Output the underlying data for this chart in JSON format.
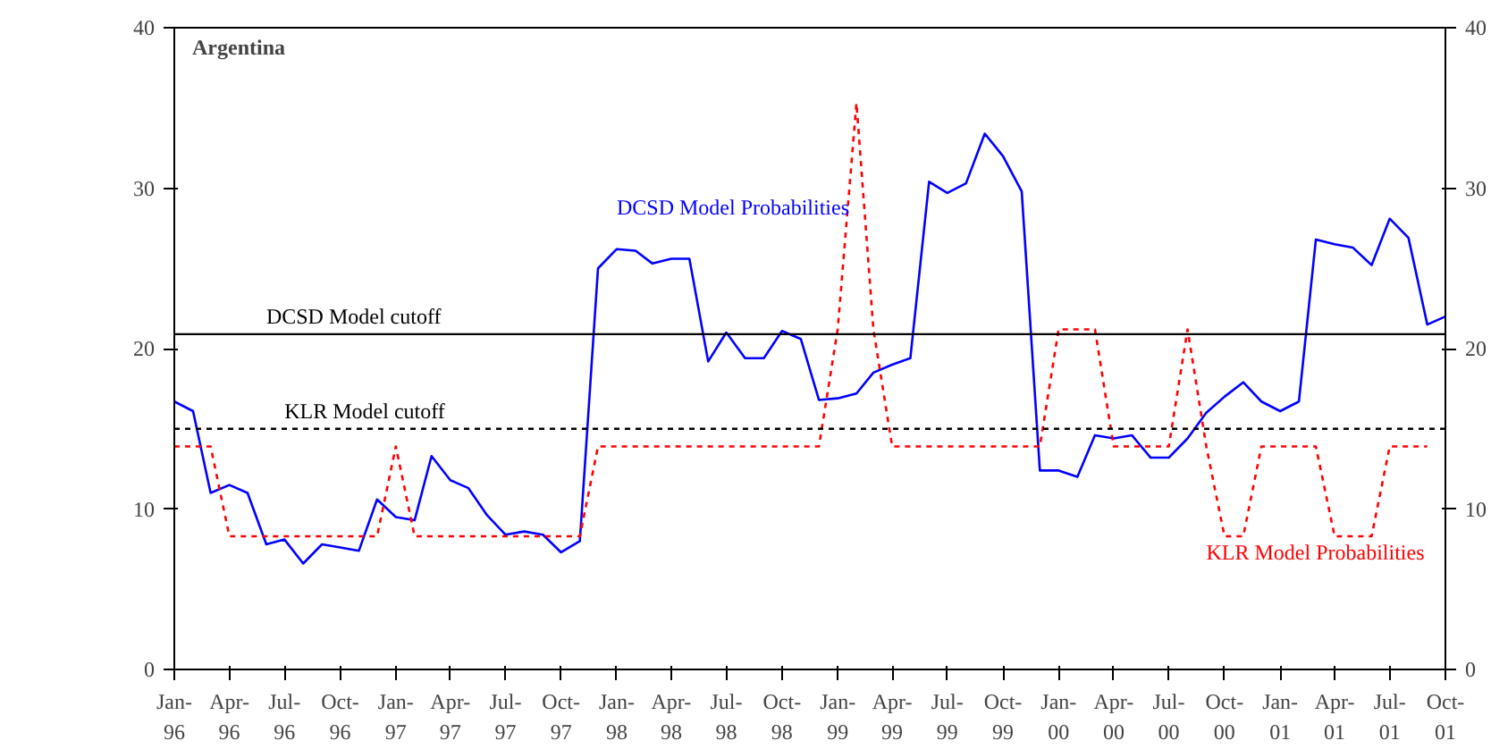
{
  "chart_data": {
    "type": "line",
    "title": "Argentina",
    "x": [
      "1996-01",
      "1996-02",
      "1996-03",
      "1996-04",
      "1996-05",
      "1996-06",
      "1996-07",
      "1996-08",
      "1996-09",
      "1996-10",
      "1996-11",
      "1996-12",
      "1997-01",
      "1997-02",
      "1997-03",
      "1997-04",
      "1997-05",
      "1997-06",
      "1997-07",
      "1997-08",
      "1997-09",
      "1997-10",
      "1997-11",
      "1997-12",
      "1998-01",
      "1998-02",
      "1998-03",
      "1998-04",
      "1998-05",
      "1998-06",
      "1998-07",
      "1998-08",
      "1998-09",
      "1998-10",
      "1998-11",
      "1998-12",
      "1999-01",
      "1999-02",
      "1999-03",
      "1999-04",
      "1999-05",
      "1999-06",
      "1999-07",
      "1999-08",
      "1999-09",
      "1999-10",
      "1999-11",
      "1999-12",
      "2000-01",
      "2000-02",
      "2000-03",
      "2000-04",
      "2000-05",
      "2000-06",
      "2000-07",
      "2000-08",
      "2000-09",
      "2000-10",
      "2000-11",
      "2000-12",
      "2001-01",
      "2001-02",
      "2001-03",
      "2001-04",
      "2001-05",
      "2001-06",
      "2001-07",
      "2001-08",
      "2001-09",
      "2001-10"
    ],
    "series": [
      {
        "name": "DCSD Model Probabilities",
        "color": "#0000ff",
        "line_style": "solid",
        "values": [
          16.7,
          16.1,
          11,
          11.5,
          11,
          7.8,
          8.1,
          6.6,
          7.8,
          7.6,
          7.4,
          10.6,
          9.5,
          9.3,
          13.3,
          11.8,
          11.3,
          9.6,
          8.4,
          8.6,
          8.4,
          7.3,
          8.0,
          25,
          26.2,
          26.1,
          25.3,
          25.6,
          25.6,
          19.2,
          21,
          19.4,
          19.4,
          21.1,
          20.6,
          16.8,
          16.9,
          17.2,
          18.5,
          19,
          19.4,
          30.4,
          29.7,
          30.3,
          33.4,
          32,
          29.8,
          12.4,
          12.4,
          12.0,
          14.6,
          14.4,
          14.6,
          13.2,
          13.2,
          14.4,
          16,
          17,
          17.9,
          16.7,
          16.1,
          16.7,
          26.8,
          26.5,
          26.3,
          25.2,
          28.1,
          26.9,
          21.5,
          22
        ]
      },
      {
        "name": "KLR Model Probabilities",
        "color": "#ff0000",
        "line_style": "dashed",
        "values": [
          13.9,
          13.9,
          13.9,
          8.3,
          8.3,
          8.3,
          8.3,
          8.3,
          8.3,
          8.3,
          8.3,
          8.3,
          13.9,
          8.3,
          8.3,
          8.3,
          8.3,
          8.3,
          8.3,
          8.3,
          8.3,
          8.3,
          8.3,
          13.9,
          13.9,
          13.9,
          13.9,
          13.9,
          13.9,
          13.9,
          13.9,
          13.9,
          13.9,
          13.9,
          13.9,
          13.9,
          21.2,
          35.3,
          21.2,
          13.9,
          13.9,
          13.9,
          13.9,
          13.9,
          13.9,
          13.9,
          13.9,
          13.9,
          21.2,
          21.2,
          21.2,
          13.9,
          13.9,
          13.9,
          13.9,
          21.2,
          13.9,
          8.3,
          8.3,
          13.9,
          13.9,
          13.9,
          13.9,
          8.3,
          8.3,
          8.3,
          13.9,
          13.9,
          13.9,
          null
        ]
      }
    ],
    "xlim": [
      "1996-01",
      "2001-10"
    ],
    "xticks": [
      {
        "value": "1996-01",
        "label": "Jan-96"
      },
      {
        "value": "1996-04",
        "label": "Apr-96"
      },
      {
        "value": "1996-07",
        "label": "Jul-96"
      },
      {
        "value": "1996-10",
        "label": "Oct-96"
      },
      {
        "value": "1997-01",
        "label": "Jan-97"
      },
      {
        "value": "1997-04",
        "label": "Apr-97"
      },
      {
        "value": "1997-07",
        "label": "Jul-97"
      },
      {
        "value": "1997-10",
        "label": "Oct-97"
      },
      {
        "value": "1998-01",
        "label": "Jan-98"
      },
      {
        "value": "1998-04",
        "label": "Apr-98"
      },
      {
        "value": "1998-07",
        "label": "Jul-98"
      },
      {
        "value": "1998-10",
        "label": "Oct-98"
      },
      {
        "value": "1999-01",
        "label": "Jan-99"
      },
      {
        "value": "1999-04",
        "label": "Apr-99"
      },
      {
        "value": "1999-07",
        "label": "Jul-99"
      },
      {
        "value": "1999-10",
        "label": "Oct-99"
      },
      {
        "value": "2000-01",
        "label": "Jan-00"
      },
      {
        "value": "2000-04",
        "label": "Apr-00"
      },
      {
        "value": "2000-07",
        "label": "Jul-00"
      },
      {
        "value": "2000-10",
        "label": "Oct-00"
      },
      {
        "value": "2001-01",
        "label": "Jan-01"
      },
      {
        "value": "2001-04",
        "label": "Apr-01"
      },
      {
        "value": "2001-07",
        "label": "Jul-01"
      },
      {
        "value": "2001-10",
        "label": "Oct-01"
      }
    ],
    "ylim": [
      0,
      40
    ],
    "yticks": [
      0,
      10,
      20,
      30,
      40
    ],
    "y2lim": [
      0,
      40
    ],
    "y2ticks": [
      0,
      10,
      20,
      30,
      40
    ],
    "ref_lines": [
      {
        "axis": "y",
        "value": 20.9,
        "label": "DCSD Model cutoff",
        "color": "#000000",
        "line_style": "solid"
      },
      {
        "axis": "y",
        "value": 15,
        "label": "KLR Model cutoff",
        "color": "#000000",
        "line_style": "dashed"
      }
    ],
    "grid": false,
    "marker": "none"
  }
}
